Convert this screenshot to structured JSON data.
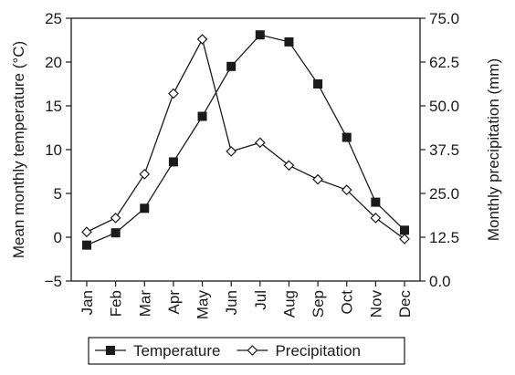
{
  "chart_data": {
    "type": "line",
    "categories": [
      "Jan",
      "Feb",
      "Mar",
      "Apr",
      "May",
      "Jun",
      "Jul",
      "Aug",
      "Sep",
      "Oct",
      "Nov",
      "Dec"
    ],
    "series": [
      {
        "name": "Temperature",
        "axis": "left",
        "marker": "filled-square",
        "values": [
          -0.9,
          0.5,
          3.3,
          8.6,
          13.8,
          19.5,
          23.1,
          22.3,
          17.5,
          11.4,
          4.0,
          0.8
        ]
      },
      {
        "name": "Precipitation",
        "axis": "right",
        "marker": "open-diamond",
        "values": [
          14.0,
          18.0,
          30.5,
          53.5,
          69.0,
          37.0,
          39.5,
          33.0,
          29.0,
          26.0,
          18.0,
          12.0
        ]
      }
    ],
    "ylabel_left": "Mean monthly temperature (°C)",
    "ylabel_right": "Monthly precipitation (mm)",
    "ylim_left": [
      -5,
      25
    ],
    "yticks_left": [
      "−5",
      "0",
      "5",
      "10",
      "15",
      "20",
      "25"
    ],
    "ylim_right": [
      0,
      75
    ],
    "yticks_right": [
      "0.0",
      "12.5",
      "25.0",
      "37.5",
      "50.0",
      "62.5",
      "75.0"
    ],
    "grid": false,
    "legend_placement": "bottom",
    "colors": {
      "line": "#1a1a1a",
      "marker_fill": "#1a1a1a",
      "background": "#ffffff"
    }
  }
}
